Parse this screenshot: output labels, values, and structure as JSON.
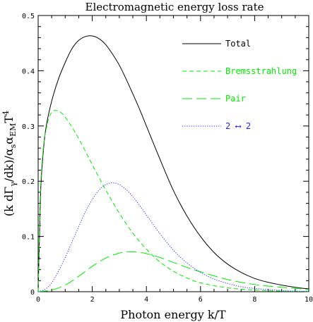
{
  "chart_data": {
    "type": "line",
    "title": "Electromagnetic energy loss rate",
    "xlabel": "Photon energy  k/T",
    "ylabel_parts": {
      "a": "(k dΓ",
      "a_sub": "γ",
      "b": "/dk)/α",
      "b_sub": "s",
      "c": "α",
      "c_sub": "EM",
      "d": "T",
      "d_sup": "4"
    },
    "xlim": [
      0,
      10
    ],
    "ylim": [
      0,
      0.5
    ],
    "x_ticks": [
      "0",
      "2",
      "4",
      "6",
      "8",
      "10"
    ],
    "y_ticks": [
      "0",
      "0.1",
      "0.2",
      "0.3",
      "0.4",
      "0.5"
    ],
    "grid": false,
    "legend_position": "top-right",
    "series": [
      {
        "name": "Total",
        "color": "#000000",
        "style": "solid",
        "x": [
          0,
          0.05,
          0.1,
          0.2,
          0.3,
          0.5,
          0.75,
          1.0,
          1.25,
          1.5,
          1.75,
          2.0,
          2.25,
          2.5,
          2.75,
          3.0,
          3.25,
          3.5,
          3.75,
          4.0,
          4.5,
          5.0,
          5.5,
          6.0,
          6.5,
          7.0,
          7.5,
          8.0,
          8.5,
          9.0,
          9.5,
          10.0
        ],
        "values": [
          0,
          0.1,
          0.19,
          0.26,
          0.3,
          0.345,
          0.385,
          0.415,
          0.44,
          0.455,
          0.462,
          0.463,
          0.458,
          0.447,
          0.43,
          0.41,
          0.385,
          0.358,
          0.33,
          0.3,
          0.24,
          0.183,
          0.137,
          0.1,
          0.071,
          0.05,
          0.035,
          0.024,
          0.017,
          0.012,
          0.008,
          0.005
        ]
      },
      {
        "name": "Bremsstrahlung",
        "color": "#00ee00",
        "style": "dashed",
        "x": [
          0,
          0.05,
          0.1,
          0.2,
          0.3,
          0.4,
          0.5,
          0.6,
          0.75,
          0.9,
          1.0,
          1.25,
          1.5,
          1.75,
          2.0,
          2.5,
          3.0,
          3.5,
          4.0,
          4.5,
          5.0,
          5.5,
          6.0,
          7.0,
          8.0,
          9.0,
          10.0
        ],
        "values": [
          0,
          0.12,
          0.2,
          0.265,
          0.295,
          0.315,
          0.325,
          0.328,
          0.327,
          0.322,
          0.316,
          0.298,
          0.277,
          0.254,
          0.23,
          0.184,
          0.142,
          0.106,
          0.077,
          0.054,
          0.037,
          0.025,
          0.016,
          0.007,
          0.003,
          0.001,
          0.0005
        ]
      },
      {
        "name": "Pair",
        "color": "#00ee00",
        "style": "longdash",
        "x": [
          0,
          0.5,
          1.0,
          1.5,
          2.0,
          2.5,
          3.0,
          3.25,
          3.5,
          3.75,
          4.0,
          4.5,
          5.0,
          5.5,
          6.0,
          7.0,
          8.0,
          9.0,
          10.0
        ],
        "values": [
          0,
          0.003,
          0.012,
          0.028,
          0.046,
          0.061,
          0.07,
          0.072,
          0.072,
          0.071,
          0.069,
          0.062,
          0.053,
          0.044,
          0.036,
          0.022,
          0.013,
          0.008,
          0.004
        ]
      },
      {
        "name": "2 ⟷ 2",
        "color": "#2222ff",
        "style": "dotted",
        "x": [
          0,
          0.25,
          0.5,
          0.75,
          1.0,
          1.25,
          1.5,
          1.75,
          2.0,
          2.25,
          2.5,
          2.75,
          3.0,
          3.25,
          3.5,
          3.75,
          4.0,
          4.5,
          5.0,
          5.5,
          6.0,
          6.5,
          7.0,
          7.5,
          8.0,
          8.5,
          9.0,
          9.5,
          10.0
        ],
        "values": [
          0,
          0.004,
          0.016,
          0.037,
          0.062,
          0.09,
          0.118,
          0.145,
          0.167,
          0.184,
          0.194,
          0.197,
          0.194,
          0.185,
          0.172,
          0.156,
          0.139,
          0.105,
          0.075,
          0.052,
          0.035,
          0.023,
          0.015,
          0.009,
          0.006,
          0.004,
          0.002,
          0.001,
          0.0005
        ]
      }
    ]
  }
}
